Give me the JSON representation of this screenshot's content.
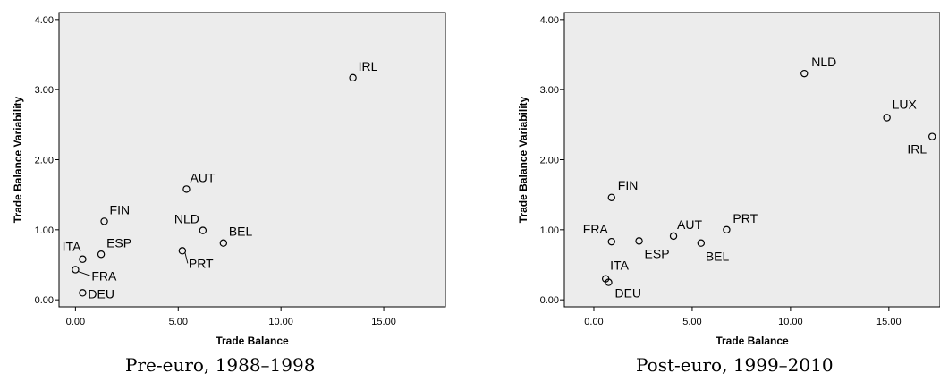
{
  "chart_data": [
    {
      "type": "scatter",
      "title": "",
      "caption": "Pre-euro, 1988–1998",
      "xlabel": "Trade Balance",
      "ylabel": "Trade Balance Variability",
      "xlim": [
        -0.8,
        18
      ],
      "ylim": [
        -0.1,
        4.1
      ],
      "xticks": [
        "0.00",
        "5.00",
        "10.00",
        "15.00"
      ],
      "yticks": [
        "0.00",
        "1.00",
        "2.00",
        "3.00",
        "4.00"
      ],
      "plot_background": "#ececec",
      "points": [
        {
          "label": "IRL",
          "x": 13.5,
          "y": 3.17
        },
        {
          "label": "AUT",
          "x": 5.4,
          "y": 1.58
        },
        {
          "label": "FIN",
          "x": 1.4,
          "y": 1.12
        },
        {
          "label": "NLD",
          "x": 6.2,
          "y": 0.99
        },
        {
          "label": "BEL",
          "x": 7.2,
          "y": 0.81
        },
        {
          "label": "ITA",
          "x": 0.35,
          "y": 0.58
        },
        {
          "label": "ESP",
          "x": 1.25,
          "y": 0.65
        },
        {
          "label": "PRT",
          "x": 5.2,
          "y": 0.7
        },
        {
          "label": "FRA",
          "x": 0.0,
          "y": 0.43
        },
        {
          "label": "DEU",
          "x": 0.35,
          "y": 0.1
        }
      ]
    },
    {
      "type": "scatter",
      "title": "",
      "caption": "Post-euro, 1999–2010",
      "xlabel": "Trade Balance",
      "ylabel": "Trade Balance Variability",
      "xlim": [
        -1.5,
        17.6
      ],
      "ylim": [
        -0.1,
        4.1
      ],
      "xticks": [
        "0.00",
        "5.00",
        "10.00",
        "15.00"
      ],
      "yticks": [
        "0.00",
        "1.00",
        "2.00",
        "3.00",
        "4.00"
      ],
      "plot_background": "#ececec",
      "points": [
        {
          "label": "NLD",
          "x": 10.7,
          "y": 3.23
        },
        {
          "label": "LUX",
          "x": 14.9,
          "y": 2.6
        },
        {
          "label": "IRL",
          "x": 17.2,
          "y": 2.33
        },
        {
          "label": "FIN",
          "x": 0.9,
          "y": 1.46
        },
        {
          "label": "PRT",
          "x": 6.75,
          "y": 1.0
        },
        {
          "label": "AUT",
          "x": 4.05,
          "y": 0.91
        },
        {
          "label": "FRA",
          "x": 0.9,
          "y": 0.83
        },
        {
          "label": "ESP",
          "x": 2.3,
          "y": 0.84
        },
        {
          "label": "BEL",
          "x": 5.45,
          "y": 0.81
        },
        {
          "label": "ITA",
          "x": 0.6,
          "y": 0.3
        },
        {
          "label": "DEU",
          "x": 0.75,
          "y": 0.25
        }
      ]
    }
  ]
}
